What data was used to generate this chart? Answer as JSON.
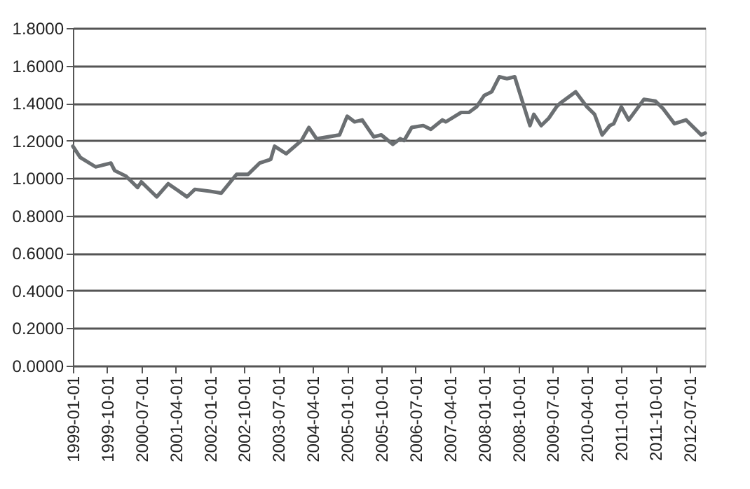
{
  "chart_data": {
    "type": "line",
    "color": "#6b6f72",
    "grid": "y",
    "marker": "none",
    "line_style": "solid",
    "x": [
      "1999-01",
      "1999-03",
      "1999-07",
      "1999-09",
      "1999-11",
      "1999-12",
      "2000-03",
      "2000-06",
      "2000-07",
      "2000-11",
      "2001-02",
      "2001-07",
      "2001-09",
      "2002-01",
      "2002-04",
      "2002-08",
      "2002-11",
      "2003-02",
      "2003-05",
      "2003-06",
      "2003-09",
      "2004-01",
      "2004-03",
      "2004-05",
      "2004-08",
      "2004-11",
      "2005-01",
      "2005-03",
      "2005-05",
      "2005-08",
      "2005-10",
      "2006-01",
      "2006-03",
      "2006-04",
      "2006-06",
      "2006-09",
      "2006-11",
      "2007-02",
      "2007-03",
      "2007-07",
      "2007-09",
      "2007-11",
      "2008-01",
      "2008-03",
      "2008-05",
      "2008-07",
      "2008-09",
      "2008-11",
      "2009-01",
      "2009-02",
      "2009-04",
      "2009-06",
      "2009-08",
      "2009-09",
      "2010-01",
      "2010-04",
      "2010-06",
      "2010-08",
      "2010-10",
      "2010-11",
      "2011-01",
      "2011-03",
      "2011-07",
      "2011-10",
      "2011-12",
      "2012-03",
      "2012-06",
      "2012-10",
      "2012-11"
    ],
    "values": [
      1.17,
      1.11,
      1.06,
      1.07,
      1.08,
      1.04,
      1.01,
      0.95,
      0.98,
      0.9,
      0.97,
      0.9,
      0.94,
      0.93,
      0.92,
      1.02,
      1.02,
      1.08,
      1.1,
      1.17,
      1.13,
      1.2,
      1.27,
      1.21,
      1.22,
      1.23,
      1.33,
      1.3,
      1.31,
      1.22,
      1.23,
      1.18,
      1.21,
      1.2,
      1.27,
      1.28,
      1.26,
      1.31,
      1.3,
      1.35,
      1.35,
      1.38,
      1.44,
      1.46,
      1.54,
      1.53,
      1.54,
      1.41,
      1.28,
      1.34,
      1.28,
      1.32,
      1.38,
      1.4,
      1.46,
      1.38,
      1.34,
      1.23,
      1.28,
      1.29,
      1.38,
      1.31,
      1.42,
      1.41,
      1.37,
      1.29,
      1.31,
      1.23,
      1.24
    ],
    "xlim": [
      "1999-01-01",
      "2012-11-01"
    ],
    "xticks": [
      "1999-01-01",
      "1999-10-01",
      "2000-07-01",
      "2001-04-01",
      "2002-01-01",
      "2002-10-01",
      "2003-07-01",
      "2004-04-01",
      "2005-01-01",
      "2005-10-01",
      "2006-07-01",
      "2007-04-01",
      "2008-01-01",
      "2008-10-01",
      "2009-07-01",
      "2010-04-01",
      "2011-01-01",
      "2011-10-01",
      "2012-07-01"
    ],
    "ylim": [
      0,
      1.8
    ],
    "yticks": [
      {
        "value": 0,
        "label": "0.0000"
      },
      {
        "value": 0.2,
        "label": "0.2000"
      },
      {
        "value": 0.4,
        "label": "0.4000"
      },
      {
        "value": 0.6,
        "label": "0.6000"
      },
      {
        "value": 0.8,
        "label": "0.8000"
      },
      {
        "value": 1.0,
        "label": "1.0000"
      },
      {
        "value": 1.2,
        "label": "1.2000"
      },
      {
        "value": 1.4,
        "label": "1.4000"
      },
      {
        "value": 1.6,
        "label": "1.6000"
      },
      {
        "value": 1.8,
        "label": "1.8000"
      }
    ]
  }
}
